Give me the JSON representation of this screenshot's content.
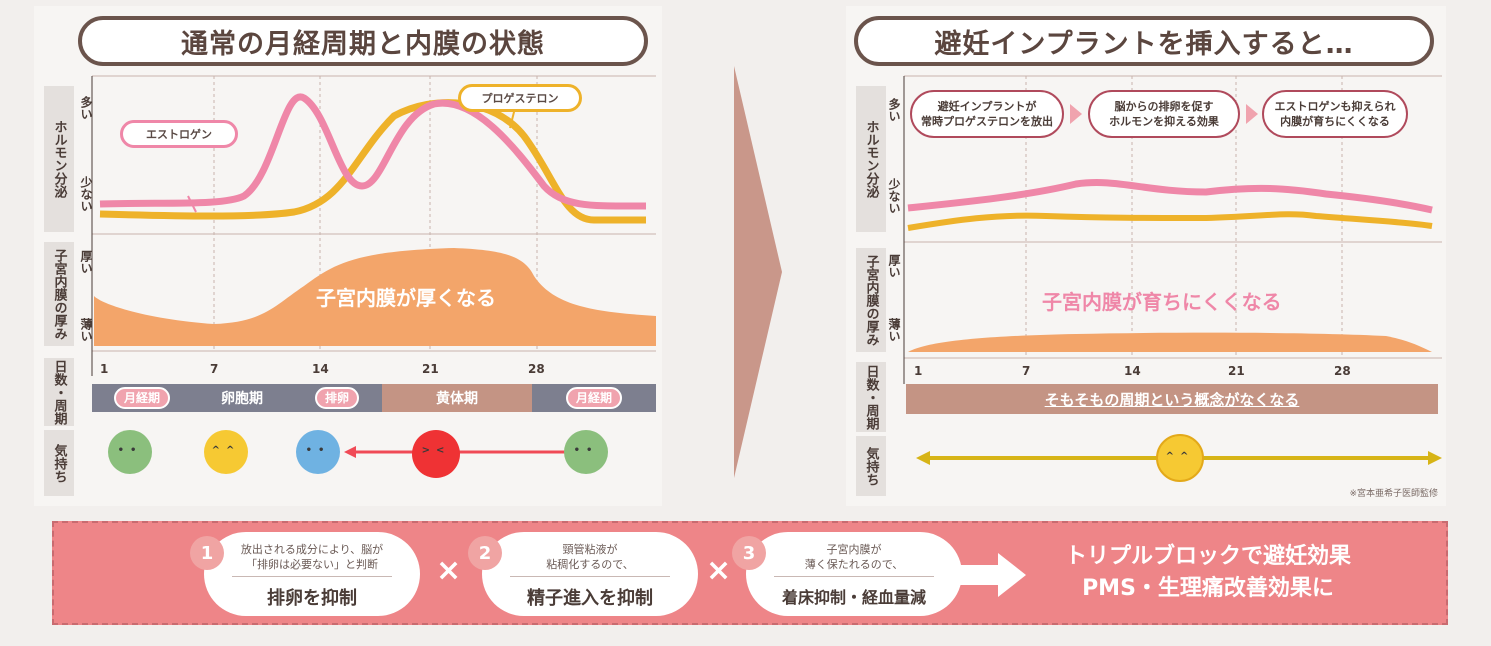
{
  "left": {
    "title": "通常の月経周期と内膜の状態",
    "hormone_label": "ホルモン分泌",
    "hormone_high": "多い",
    "hormone_low": "少ない",
    "estrogen_label": "エストロゲン",
    "progesterone_label": "プロゲステロン",
    "endometrium_label": "子宮内膜の厚み",
    "thick": "厚い",
    "thin": "薄い",
    "endometrium_text": "子宮内膜が厚くなる",
    "days_label": "日数・周期",
    "days": [
      "1",
      "7",
      "14",
      "21",
      "28"
    ],
    "phases": {
      "menstrual": "月経期",
      "follicular": "卵胞期",
      "ovulation": "排卵",
      "luteal": "黄体期",
      "menstrual2": "月経期"
    },
    "mood_label": "気持ち"
  },
  "right": {
    "title": "避妊インプラントを挿入すると…",
    "hormone_label": "ホルモン分泌",
    "hormone_high": "多い",
    "hormone_low": "少ない",
    "flow": [
      {
        "line1": "避妊インプラントが",
        "line2": "常時プロゲステロンを放出"
      },
      {
        "line1": "脳からの排卵を促す",
        "line2": "ホルモンを抑える効果"
      },
      {
        "line1": "エストロゲンも抑えられ",
        "line2": "内膜が育ちにくくなる"
      }
    ],
    "endometrium_label": "子宮内膜の厚み",
    "thick": "厚い",
    "thin": "薄い",
    "endometrium_text": "子宮内膜が育ちにくくなる",
    "days_label": "日数・周期",
    "days": [
      "1",
      "7",
      "14",
      "21",
      "28"
    ],
    "cycle_text": "そもそもの周期という概念がなくなる",
    "mood_label": "気持ち",
    "supervision": "※宮本亜希子医師監修"
  },
  "bottom": {
    "items": [
      {
        "num": "1",
        "small1": "放出される成分により、脳が",
        "small2": "「排卵は必要ない」と判断",
        "main": "排卵を抑制"
      },
      {
        "num": "2",
        "small1": "頸管粘液が",
        "small2": "粘稠化するので、",
        "main": "精子進入を抑制"
      },
      {
        "num": "3",
        "small1": "子宮内膜が",
        "small2": "薄く保たれるので、",
        "main": "着床抑制・経血量減"
      }
    ],
    "times": "×",
    "result_line1": "トリプルブロックで避妊効果",
    "result_line2": "PMS・生理痛改善効果に"
  },
  "colors": {
    "estrogen": "#ef87a8",
    "progesterone": "#eeb22a",
    "endometrium": "#f3a56a",
    "luteal_phase": "#c49484",
    "follicular_phase": "#7d7f8f",
    "strip": "#ee8588",
    "arrow": "#c9978a"
  }
}
